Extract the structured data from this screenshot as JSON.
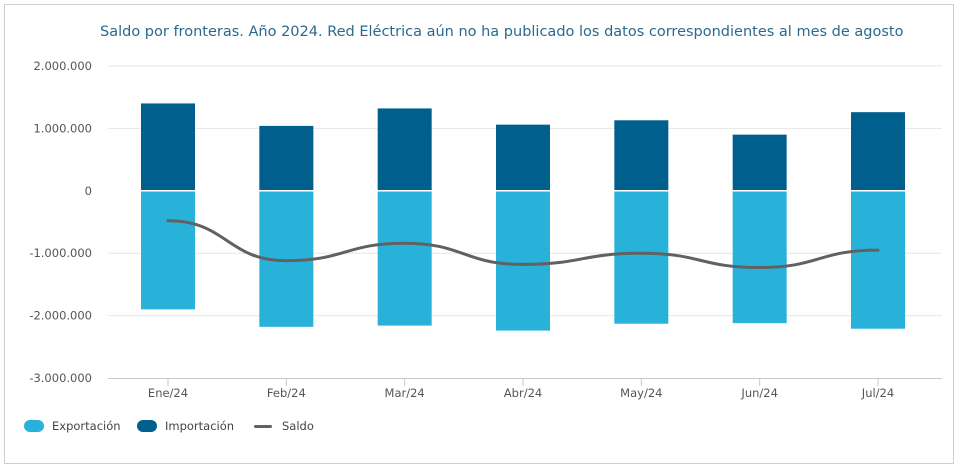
{
  "chart_data": {
    "type": "bar",
    "title": "Saldo por fronteras. Año 2024. Red Eléctrica aún no ha publicado los datos correspondientes al mes de agosto",
    "categories": [
      "Ene/24",
      "Feb/24",
      "Mar/24",
      "Abr/24",
      "May/24",
      "Jun/24",
      "Jul/24"
    ],
    "series": [
      {
        "name": "Exportación",
        "kind": "bar",
        "color": "#29b2d9",
        "values": [
          -1900000,
          -2180000,
          -2160000,
          -2240000,
          -2130000,
          -2120000,
          -2210000
        ]
      },
      {
        "name": "Importación",
        "kind": "bar",
        "color": "#005f8c",
        "values": [
          1400000,
          1040000,
          1320000,
          1060000,
          1130000,
          900000,
          1260000
        ]
      },
      {
        "name": "Saldo",
        "kind": "line",
        "color": "#616161",
        "values": [
          -480000,
          -1120000,
          -840000,
          -1180000,
          -1000000,
          -1230000,
          -950000
        ]
      }
    ],
    "stacked": true,
    "ylim": [
      -3000000,
      2000000
    ],
    "yticks": [
      2000000,
      1000000,
      0,
      -1000000,
      -2000000,
      -3000000
    ],
    "ytick_labels": [
      "2.000.000",
      "1.000.000",
      "0",
      "-1.000.000",
      "-2.000.000",
      "-3.000.000"
    ],
    "xlabel": "",
    "ylabel": "",
    "grid": true,
    "legend_position": "bottom-left"
  },
  "legend": {
    "export_label": "Exportación",
    "import_label": "Importación",
    "saldo_label": "Saldo"
  }
}
